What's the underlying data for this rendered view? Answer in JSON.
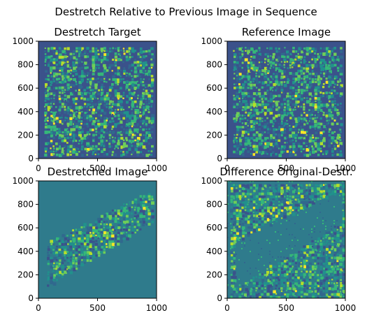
{
  "figure": {
    "suptitle": "Destretch Relative to Previous Image in Sequence"
  },
  "colors": {
    "viridis_dark": "#3b528b",
    "viridis_teal": "#2f7b8c",
    "viridis_green": "#35b779",
    "viridis_yellow": "#fde725",
    "viridis_purple": "#440154"
  },
  "chart_data": [
    {
      "type": "heatmap",
      "title": "Destretch Target",
      "xlim": [
        0,
        1000
      ],
      "ylim": [
        0,
        1000
      ],
      "xticks": [
        "0",
        "500",
        "1000"
      ],
      "yticks": [
        "0",
        "200",
        "400",
        "600",
        "800",
        "1000"
      ],
      "colormap": "viridis",
      "content": "random granular texture filling square region, dark border",
      "grid": false
    },
    {
      "type": "heatmap",
      "title": "Reference Image",
      "xlim": [
        0,
        1000
      ],
      "ylim": [
        0,
        1000
      ],
      "xticks": [
        "0",
        "500",
        "1000"
      ],
      "yticks": [
        "0",
        "200",
        "400",
        "600",
        "800",
        "1000"
      ],
      "colormap": "viridis",
      "content": "random granular texture filling square region, dark border",
      "grid": false
    },
    {
      "type": "heatmap",
      "title": "Destretched Image",
      "xlim": [
        0,
        1000
      ],
      "ylim": [
        0,
        1000
      ],
      "xticks": [
        "0",
        "500",
        "1000"
      ],
      "yticks": [
        "0",
        "200",
        "400",
        "600",
        "800",
        "1000"
      ],
      "colormap": "viridis",
      "content": "granular texture inside sheared diagonal band on uniform teal background",
      "band_corners": [
        [
          50,
          100
        ],
        [
          950,
          650
        ],
        [
          950,
          930
        ],
        [
          50,
          480
        ]
      ],
      "grid": false
    },
    {
      "type": "heatmap",
      "title": "Difference Original-Destr.",
      "xlim": [
        0,
        1000
      ],
      "ylim": [
        0,
        1000
      ],
      "xticks": [
        "0",
        "500",
        "1000"
      ],
      "yticks": [
        "0",
        "200",
        "400",
        "600",
        "800",
        "1000"
      ],
      "colormap": "viridis",
      "content": "granular texture outside sheared diagonal band; band interior nearly uniform",
      "band_corners": [
        [
          50,
          100
        ],
        [
          950,
          650
        ],
        [
          950,
          930
        ],
        [
          50,
          480
        ]
      ],
      "grid": false
    }
  ]
}
